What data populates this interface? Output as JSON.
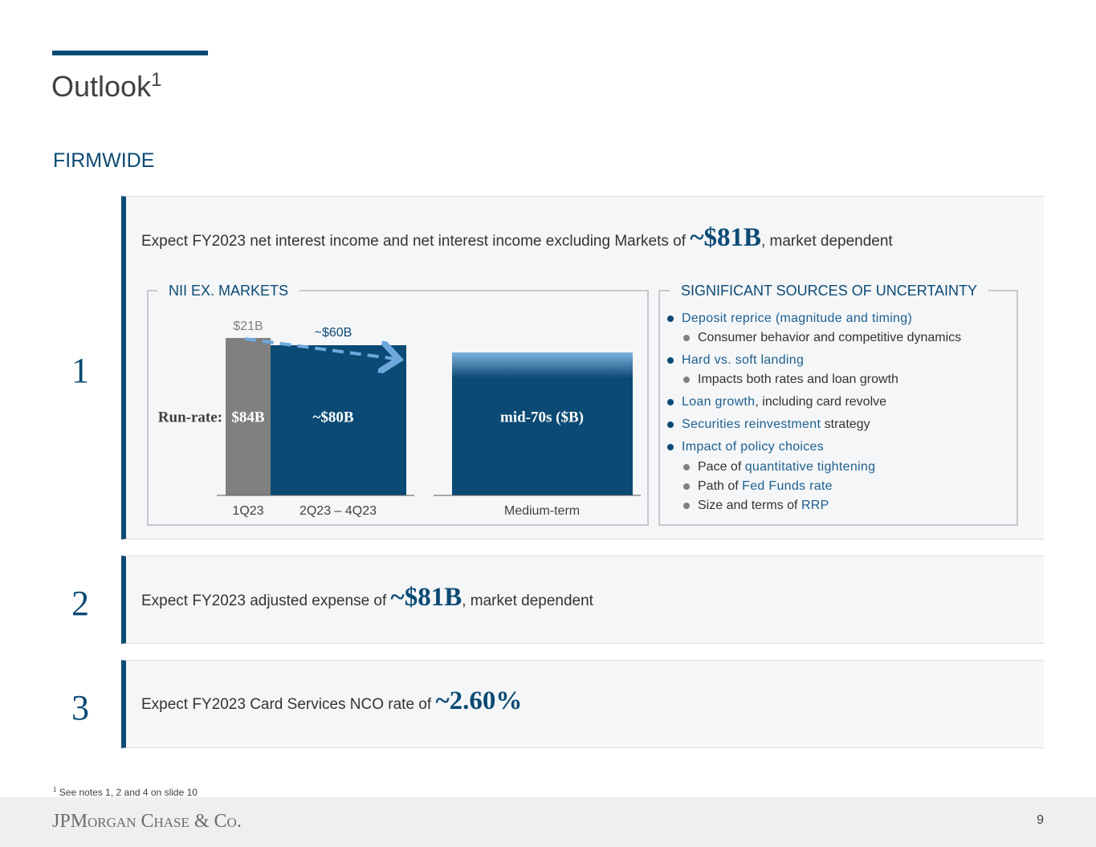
{
  "header": {
    "title": "Outlook",
    "title_sup": "1",
    "section": "FIRMWIDE"
  },
  "items": [
    {
      "number": "1",
      "text_before": "Expect FY2023 net interest income and net interest income excluding Markets of ",
      "highlight": "~$81B",
      "text_after": ", market dependent"
    },
    {
      "number": "2",
      "text_before": "Expect FY2023 adjusted expense of ",
      "highlight": "~$81B",
      "text_after": ", market dependent"
    },
    {
      "number": "3",
      "text_before": "Expect FY2023 Card Services NCO rate of ",
      "highlight": "~2.60%"
    }
  ],
  "nii_panel": {
    "title": "NII EX. MARKETS",
    "run_rate_label": "Run-rate:",
    "bars": [
      {
        "label": "1Q23",
        "top_label": "$21B",
        "value_label": "$84B"
      },
      {
        "label": "2Q23 – 4Q23",
        "top_label": "~$60B",
        "value_label": "~$80B"
      },
      {
        "label": "Medium-term",
        "value_label": "mid-70s ($B)"
      }
    ]
  },
  "uncertainty": {
    "title": "SIGNIFICANT SOURCES OF UNCERTAINTY",
    "bullets": [
      {
        "level": 1,
        "parts": [
          {
            "text": "Deposit reprice (magnitude and timing)",
            "highlight": true
          }
        ]
      },
      {
        "level": 2,
        "parts": [
          {
            "text": "Consumer behavior and competitive dynamics",
            "highlight": false
          }
        ]
      },
      {
        "level": 1,
        "parts": [
          {
            "text": "Hard vs. soft landing",
            "highlight": true
          }
        ]
      },
      {
        "level": 2,
        "parts": [
          {
            "text": "Impacts both rates and loan growth",
            "highlight": false
          }
        ]
      },
      {
        "level": 1,
        "parts": [
          {
            "text": "Loan growth",
            "highlight": true
          },
          {
            "text": ", including card revolve",
            "highlight": false
          }
        ]
      },
      {
        "level": 1,
        "parts": [
          {
            "text": "Securities reinvestment",
            "highlight": true
          },
          {
            "text": " strategy",
            "highlight": false
          }
        ]
      },
      {
        "level": 1,
        "parts": [
          {
            "text": "Impact of policy choices",
            "highlight": true
          }
        ]
      },
      {
        "level": 2,
        "parts": [
          {
            "text": "Pace of ",
            "highlight": false
          },
          {
            "text": "quantitative tightening",
            "highlight": true
          }
        ]
      },
      {
        "level": 2,
        "parts": [
          {
            "text": "Path of ",
            "highlight": false
          },
          {
            "text": "Fed Funds rate",
            "highlight": true
          }
        ]
      },
      {
        "level": 2,
        "parts": [
          {
            "text": "Size and terms of ",
            "highlight": false
          },
          {
            "text": "RRP",
            "highlight": true
          }
        ]
      }
    ]
  },
  "footnote": {
    "marker": "1",
    "text": "See notes 1, 2 and 4 on slide 10"
  },
  "footer": {
    "logo": "JPMorgan Chase & Co.",
    "page": "9"
  }
}
